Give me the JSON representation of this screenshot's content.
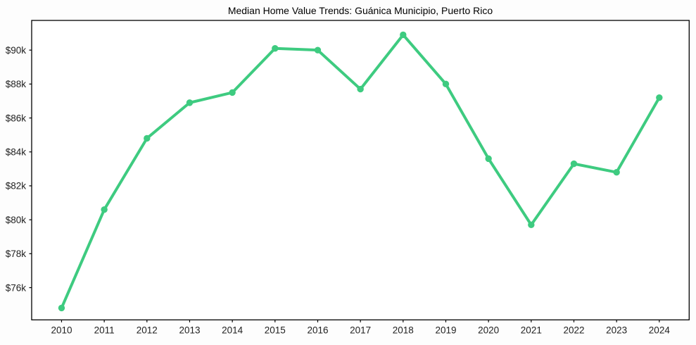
{
  "chart_data": {
    "type": "line",
    "title": "Median Home Value Trends: Guánica Municipio, Puerto Rico",
    "xlabel": "",
    "ylabel": "",
    "x": [
      2010,
      2011,
      2012,
      2013,
      2014,
      2015,
      2016,
      2017,
      2018,
      2019,
      2020,
      2021,
      2022,
      2023,
      2024
    ],
    "x_tick_labels": [
      "2010",
      "2011",
      "2012",
      "2013",
      "2014",
      "2015",
      "2016",
      "2017",
      "2018",
      "2019",
      "2020",
      "2021",
      "2022",
      "2023",
      "2024"
    ],
    "series": [
      {
        "name": "Median Home Value",
        "values": [
          74800,
          80600,
          84800,
          86900,
          87500,
          90100,
          90000,
          87700,
          90900,
          88000,
          83600,
          79700,
          83300,
          82800,
          87200
        ],
        "color": "#3ecb80",
        "marker": "circle"
      }
    ],
    "y_ticks": [
      {
        "value": 76000,
        "label": "$76k"
      },
      {
        "value": 78000,
        "label": "$78k"
      },
      {
        "value": 80000,
        "label": "$80k"
      },
      {
        "value": 82000,
        "label": "$82k"
      },
      {
        "value": 84000,
        "label": "$84k"
      },
      {
        "value": 86000,
        "label": "$86k"
      },
      {
        "value": 88000,
        "label": "$88k"
      },
      {
        "value": 90000,
        "label": "$90k"
      }
    ],
    "ylim": [
      74100,
      91750
    ],
    "xlim": [
      2009.3,
      2024.7
    ],
    "grid": false,
    "legend": "none"
  },
  "colors": {
    "figure_background": "#fdfdfd",
    "plot_background": "#ffffff",
    "axis_line": "#000000",
    "tick_label": "#212121"
  }
}
